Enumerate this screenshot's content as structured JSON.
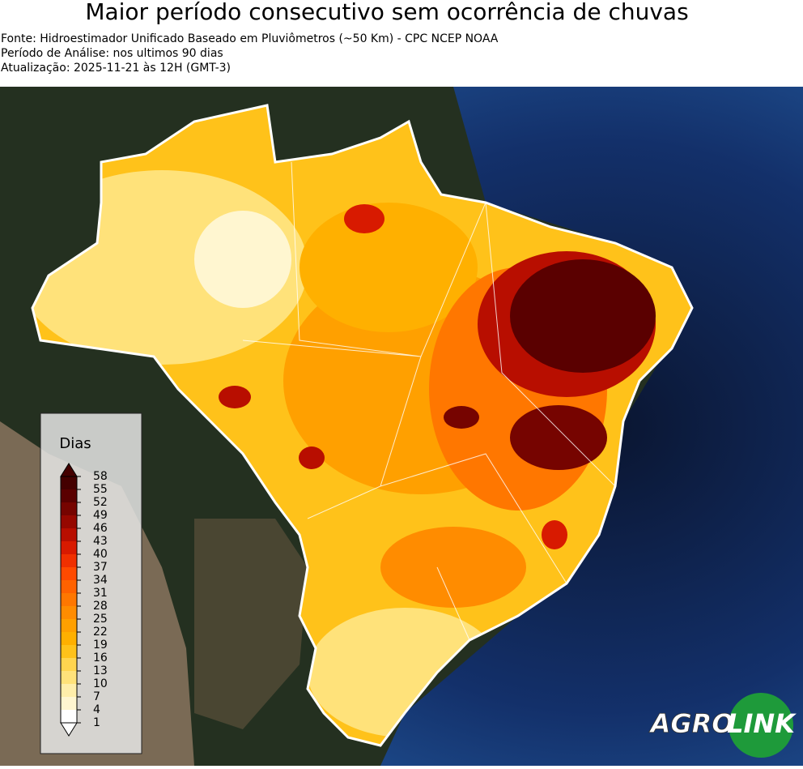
{
  "header": {
    "title": "Maior período consecutivo sem ocorrência de chuvas",
    "lines": [
      "Fonte: Hidroestimador Unificado Baseado em Pluviômetros (~50 Km) - CPC NCEP NOAA",
      "Período de Análise: nos ultimos 90 dias",
      "Atualização: 2025-11-21 às 12H (GMT-3)"
    ]
  },
  "colorbar": {
    "label": "Dias",
    "ticks": [
      1,
      4,
      7,
      10,
      13,
      16,
      19,
      22,
      25,
      28,
      31,
      34,
      37,
      40,
      43,
      46,
      49,
      52,
      55,
      58
    ],
    "colors": [
      "#ffffff",
      "#fff6d0",
      "#ffeeaa",
      "#ffe27a",
      "#ffd54f",
      "#ffc21a",
      "#ffb000",
      "#ffa000",
      "#ff8c00",
      "#ff7700",
      "#ff6200",
      "#ff4a00",
      "#f03000",
      "#d81a00",
      "#b80e00",
      "#960800",
      "#760400",
      "#5a0000",
      "#440000"
    ]
  },
  "logo": {
    "left": "AGRO",
    "right": "LINK"
  }
}
